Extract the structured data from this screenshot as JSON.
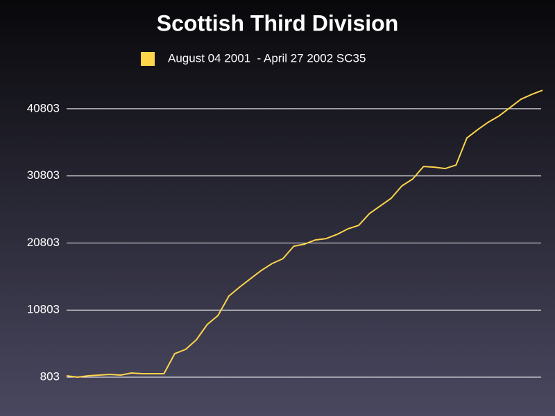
{
  "chart_data": {
    "type": "line",
    "title": "Scottish Third Division",
    "series": [
      {
        "name": "August 04 2001  - April 27 2002 SC35",
        "color": "#ffd54a",
        "values": [
          1010,
          803,
          1010,
          1113,
          1216,
          1113,
          1423,
          1320,
          1320,
          1320,
          4316,
          4935,
          6381,
          8654,
          9997,
          12890,
          14233,
          15472,
          16712,
          17745,
          18467,
          20327,
          20637,
          21257,
          21463,
          22083,
          22910,
          23426,
          25182,
          26319,
          27455,
          29314,
          30347,
          32207,
          32103,
          31897,
          32413,
          36442,
          37681,
          38818,
          39748,
          40987,
          42226,
          42949,
          43569
        ]
      }
    ],
    "ylim": [
      803,
      44000
    ],
    "yticks": [
      803,
      10803,
      20803,
      30803,
      40803
    ],
    "grid": true
  }
}
